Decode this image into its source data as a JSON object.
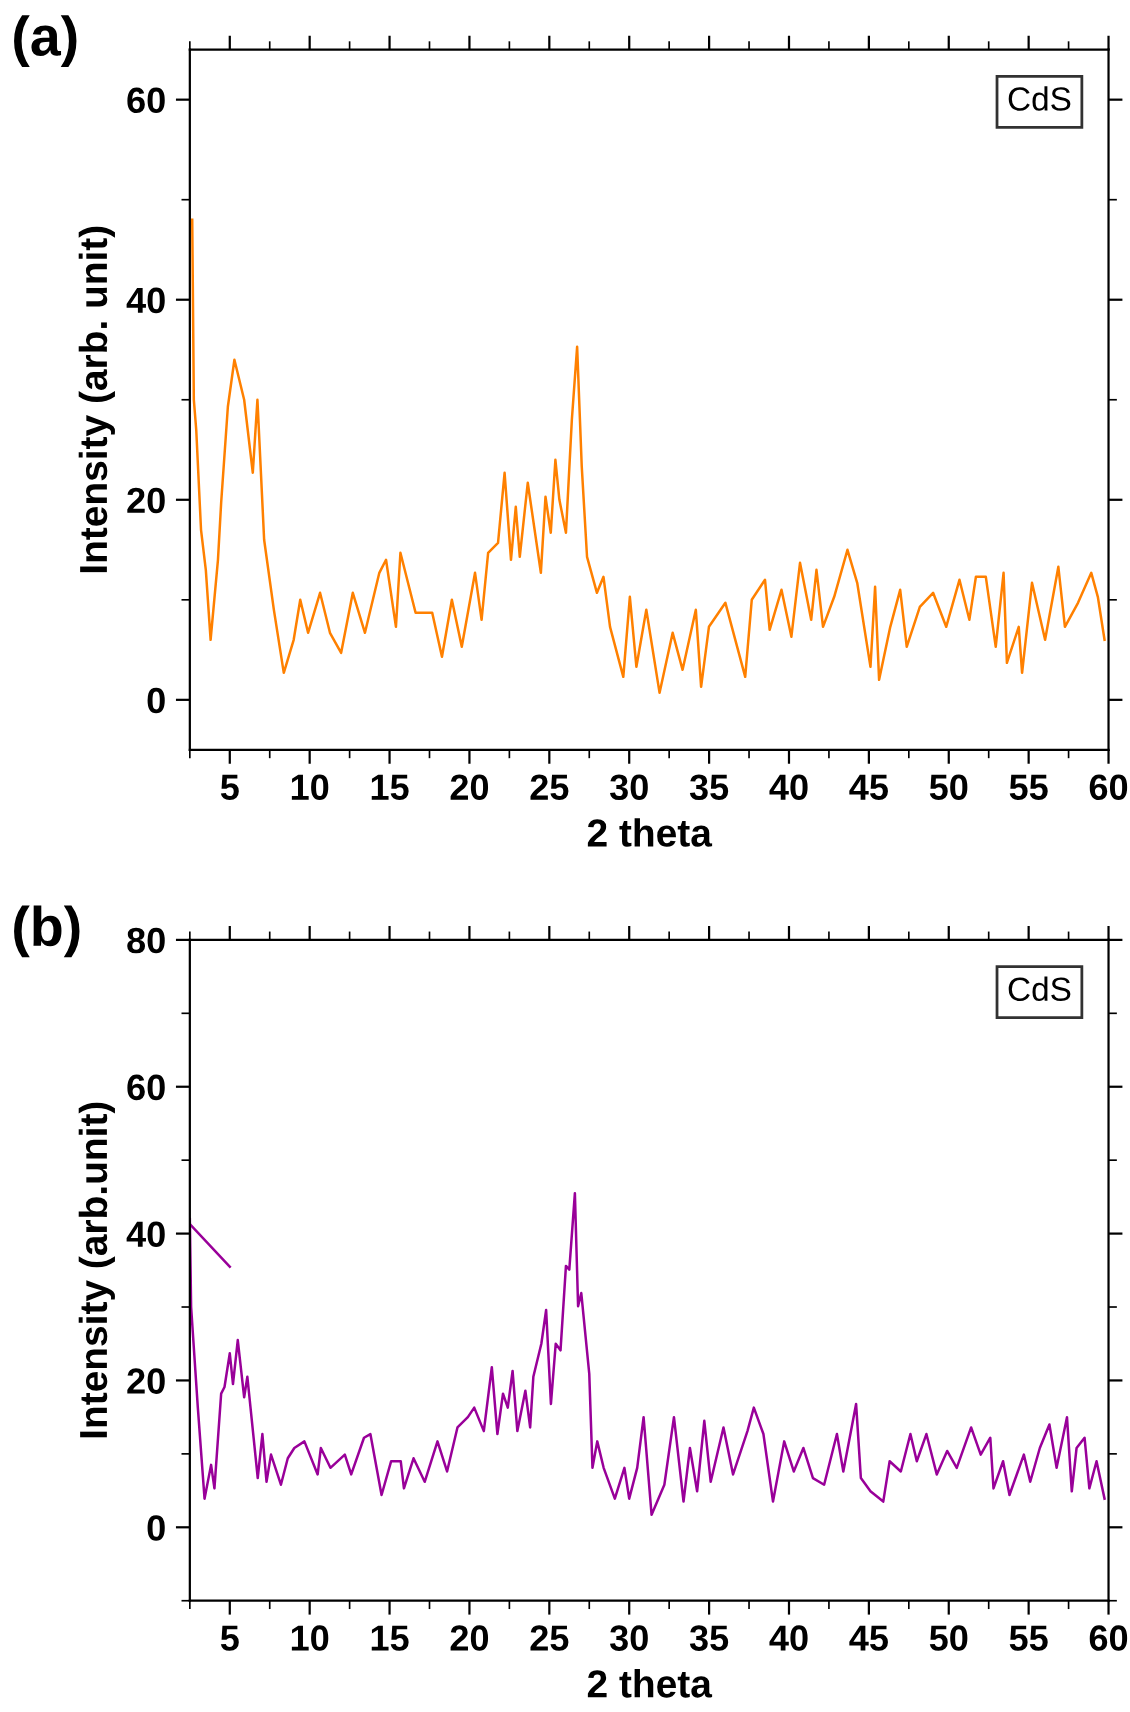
{
  "chart_data": [
    {
      "type": "line",
      "annotations": [
        "(a)"
      ],
      "xlabel": "2 theta",
      "ylabel": "Intensity (arb. unit)",
      "xlim": [
        2.5,
        60
      ],
      "ylim": [
        -5,
        65
      ],
      "xticks": [
        5,
        10,
        15,
        20,
        25,
        30,
        35,
        40,
        45,
        50,
        55,
        60
      ],
      "yticks": [
        0,
        20,
        40,
        60
      ],
      "legend": "top right",
      "grid": false,
      "series": [
        {
          "name": "CdS",
          "color": "#ff8000",
          "x": [
            2.65,
            2.75,
            2.9,
            3.2,
            3.5,
            3.8,
            4.26,
            4.46,
            4.88,
            5.29,
            5.9,
            6.44,
            6.73,
            7.15,
            7.76,
            8.38,
            9.0,
            9.41,
            9.9,
            10.65,
            11.27,
            11.97,
            12.7,
            13.46,
            14.36,
            14.78,
            15.4,
            15.68,
            16.63,
            17.67,
            18.28,
            18.9,
            19.52,
            20.35,
            20.76,
            21.17,
            21.79,
            22.2,
            22.6,
            22.9,
            23.15,
            23.65,
            24.47,
            24.76,
            25.09,
            25.38,
            25.63,
            26.04,
            26.41,
            26.74,
            27.03,
            27.36,
            27.98,
            28.39,
            28.8,
            29.63,
            30.04,
            30.45,
            31.07,
            31.9,
            32.72,
            33.34,
            34.17,
            34.5,
            34.99,
            36.02,
            37.26,
            37.67,
            38.5,
            38.79,
            39.53,
            40.15,
            40.69,
            41.39,
            41.72,
            42.13,
            42.83,
            43.66,
            44.27,
            45.1,
            45.39,
            45.64,
            46.34,
            46.96,
            47.37,
            48.19,
            49.02,
            49.84,
            50.67,
            51.29,
            51.7,
            52.32,
            52.94,
            53.43,
            53.64,
            54.38,
            54.59,
            55.21,
            56.03,
            56.86,
            57.27,
            58.09,
            58.92,
            59.33,
            59.75
          ],
          "values": [
            48,
            30,
            27,
            17,
            13,
            6,
            14,
            19.7,
            29.3,
            34,
            30,
            22.7,
            30,
            16,
            9,
            2.7,
            6,
            10,
            6.7,
            10.7,
            6.7,
            4.7,
            10.7,
            6.7,
            12.7,
            14,
            7.3,
            14.7,
            8.7,
            8.7,
            4.3,
            10,
            5.3,
            12.7,
            8,
            14.7,
            15.7,
            22.7,
            14,
            19.3,
            14.3,
            21.7,
            12.7,
            20.3,
            16.7,
            24,
            20,
            16.7,
            28,
            35.3,
            23.3,
            14.3,
            10.7,
            12.3,
            7.3,
            2.3,
            10.3,
            3.3,
            9,
            0.7,
            6.7,
            3,
            9,
            1.3,
            7.3,
            9.7,
            2.3,
            10,
            12,
            7,
            11,
            6.3,
            13.7,
            8,
            13,
            7.3,
            10.3,
            15,
            11.7,
            3.3,
            11.3,
            2,
            7.3,
            11,
            5.3,
            9.3,
            10.7,
            7.3,
            12,
            8,
            12.3,
            12.3,
            5.3,
            12.7,
            3.7,
            7.3,
            2.7,
            11.7,
            6,
            13.3,
            7.3,
            9.7,
            12.7,
            10.3,
            6
          ]
        }
      ]
    },
    {
      "type": "line",
      "annotations": [
        "(b)"
      ],
      "xlabel": "2 theta",
      "ylabel": "Intensity (arb.unit)",
      "xlim": [
        2.5,
        60
      ],
      "ylim": [
        -10,
        80
      ],
      "xticks": [
        5,
        10,
        15,
        20,
        25,
        30,
        35,
        40,
        45,
        50,
        55,
        60
      ],
      "yticks": [
        0,
        20,
        40,
        60,
        80
      ],
      "legend": "top right",
      "grid": false,
      "series": [
        {
          "name": "CdS",
          "color": "#990099",
          "x": [
            2.5,
            2.58,
            3.0,
            3.42,
            3.83,
            4.04,
            4.46,
            4.67,
            5.0,
            5.2,
            5.5,
            5.9,
            6.1,
            6.75,
            7.04,
            7.3,
            7.58,
            8.2,
            8.63,
            9.04,
            9.67,
            10.5,
            10.7,
            11.3,
            12.2,
            12.6,
            13.4,
            13.8,
            14.5,
            15.1,
            15.7,
            15.9,
            16.5,
            17.2,
            18.0,
            18.6,
            19.25,
            19.9,
            20.3,
            20.9,
            21.4,
            21.75,
            22.1,
            22.4,
            22.7,
            23.0,
            23.5,
            23.8,
            24.0,
            24.5,
            24.8,
            25.1,
            25.4,
            25.7,
            26.04,
            26.25,
            26.6,
            26.8,
            27.0,
            27.5,
            27.7,
            28.0,
            28.4,
            29.1,
            29.7,
            30.0,
            30.5,
            30.9,
            31.4,
            32.2,
            32.8,
            33.4,
            33.8,
            34.25,
            34.7,
            35.1,
            35.9,
            36.5,
            37.4,
            37.8,
            38.4,
            39.0,
            39.7,
            40.3,
            40.9,
            41.5,
            42.2,
            43.0,
            43.4,
            44.2,
            44.5,
            45.1,
            45.9,
            46.3,
            47.0,
            47.6,
            48.0,
            48.6,
            49.25,
            49.9,
            50.5,
            51.4,
            52.0,
            52.6,
            52.8,
            53.4,
            53.8,
            54.7,
            55.1,
            55.7,
            56.3,
            56.75,
            57.4,
            57.7,
            58.0,
            58.5,
            58.8,
            59.25,
            59.75
          ],
          "values": [
            42,
            30,
            16.3,
            3.9,
            8.5,
            5.3,
            18.2,
            19.1,
            23.7,
            19.5,
            25.5,
            17.7,
            20.5,
            6.7,
            12.7,
            6.2,
            9.9,
            5.8,
            9.4,
            10.8,
            11.7,
            7.2,
            10.8,
            8.1,
            9.9,
            7.2,
            12.2,
            12.7,
            4.4,
            9,
            9,
            5.3,
            9.4,
            6.2,
            11.7,
            7.6,
            13.6,
            15,
            16.3,
            13.1,
            21.8,
            12.7,
            18.2,
            16.3,
            21.3,
            13.1,
            18.6,
            13.6,
            20.5,
            25,
            29.6,
            16.8,
            25,
            24.1,
            35.6,
            35.1,
            45.5,
            30.1,
            31.9,
            20.9,
            8.1,
            11.7,
            8.1,
            3.9,
            8.1,
            3.9,
            8.1,
            15,
            1.7,
            5.8,
            15,
            3.5,
            10.8,
            4.9,
            14.5,
            6.2,
            13.6,
            7.2,
            13.1,
            16.3,
            12.7,
            3.5,
            11.7,
            7.6,
            10.8,
            6.7,
            5.8,
            12.7,
            7.6,
            16.8,
            6.7,
            4.9,
            3.5,
            9,
            7.6,
            12.7,
            9,
            12.7,
            7.2,
            10.4,
            8.1,
            13.6,
            9.9,
            12.2,
            5.3,
            9,
            4.4,
            9.9,
            6.2,
            10.8,
            14,
            8.1,
            15,
            4.9,
            10.8,
            12.2,
            5.3,
            9,
            3.9
          ]
        },
        {
          "color": "#990099",
          "x": [
            2.5,
            5.0
          ],
          "values": [
            41.3,
            35.5
          ]
        }
      ]
    }
  ]
}
